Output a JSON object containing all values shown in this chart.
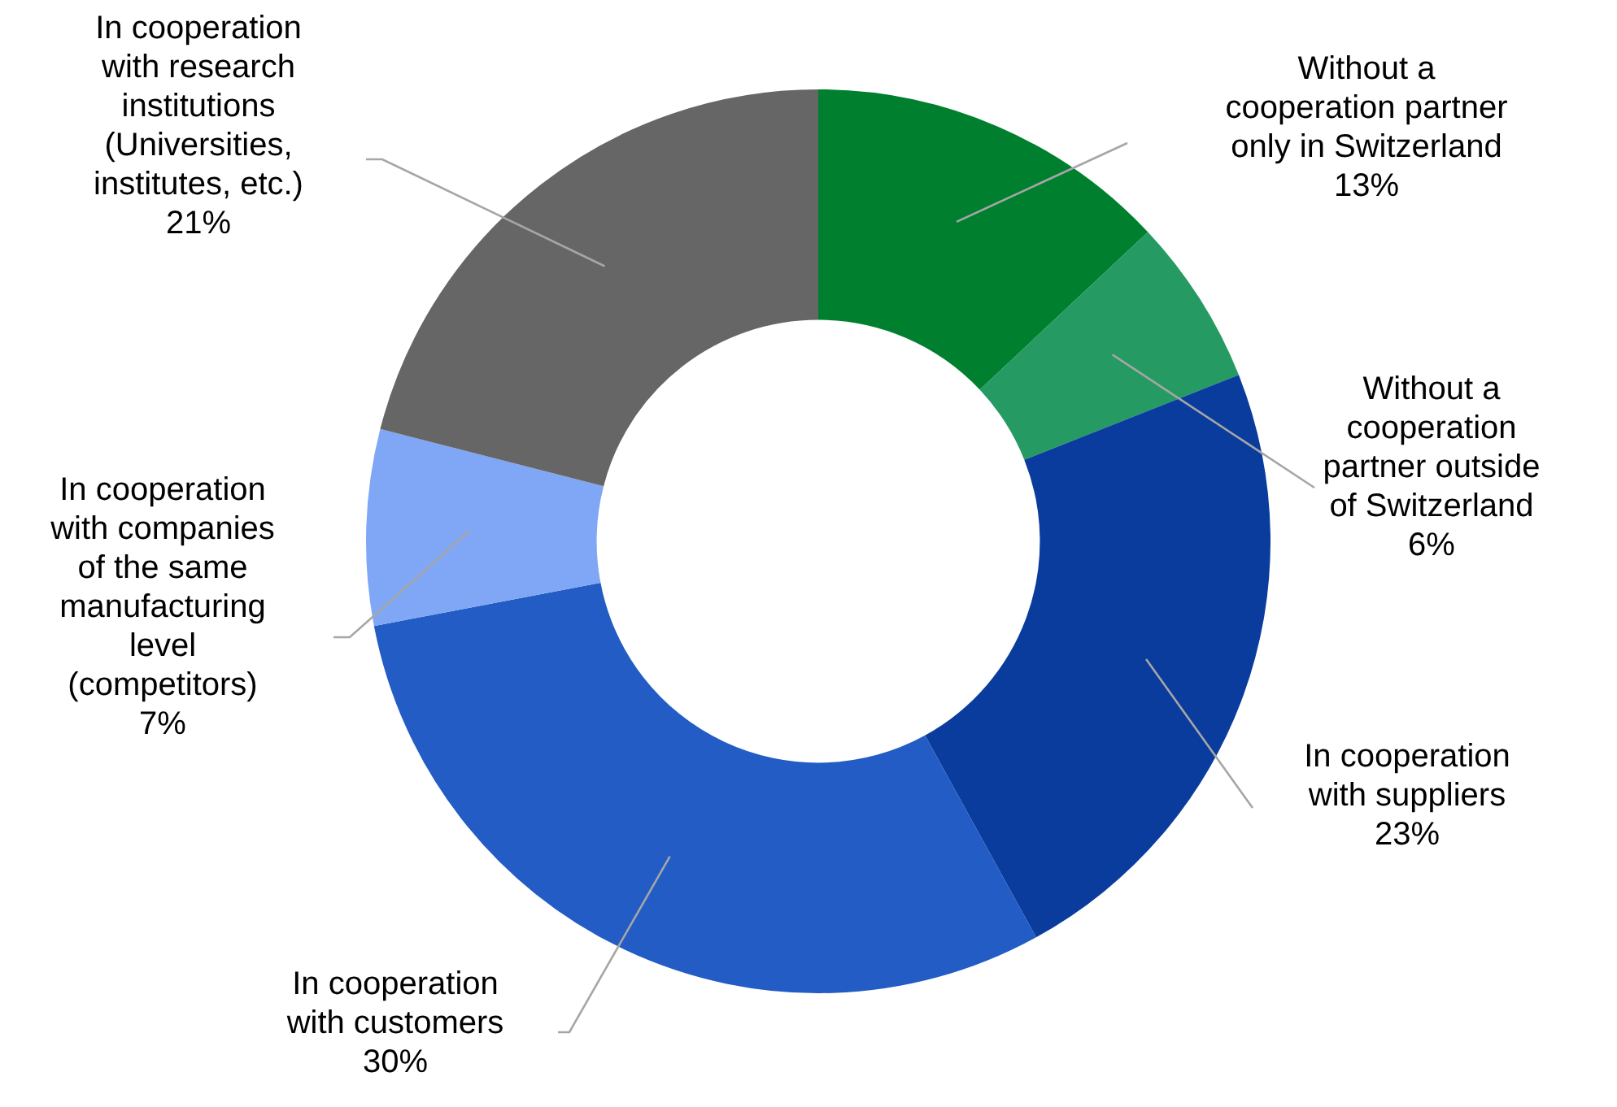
{
  "chart_data": {
    "type": "donut",
    "categories": [
      "Without a cooperation partner only in Switzerland",
      "Without a cooperation partner outside of Switzerland",
      "In cooperation with suppliers",
      "In cooperation with customers",
      "In cooperation with companies of the same manufacturing level (competitors)",
      "In cooperation with research institutions (Universities, institutes, etc.)"
    ],
    "values": [
      13,
      6,
      23,
      30,
      7,
      21
    ],
    "value_labels": [
      "13%",
      "6%",
      "23%",
      "30%",
      "7%",
      "21%"
    ],
    "colors": [
      "#00802f",
      "#259a62",
      "#0a3c9e",
      "#225cc4",
      "#7fa7f5",
      "#666666"
    ]
  }
}
